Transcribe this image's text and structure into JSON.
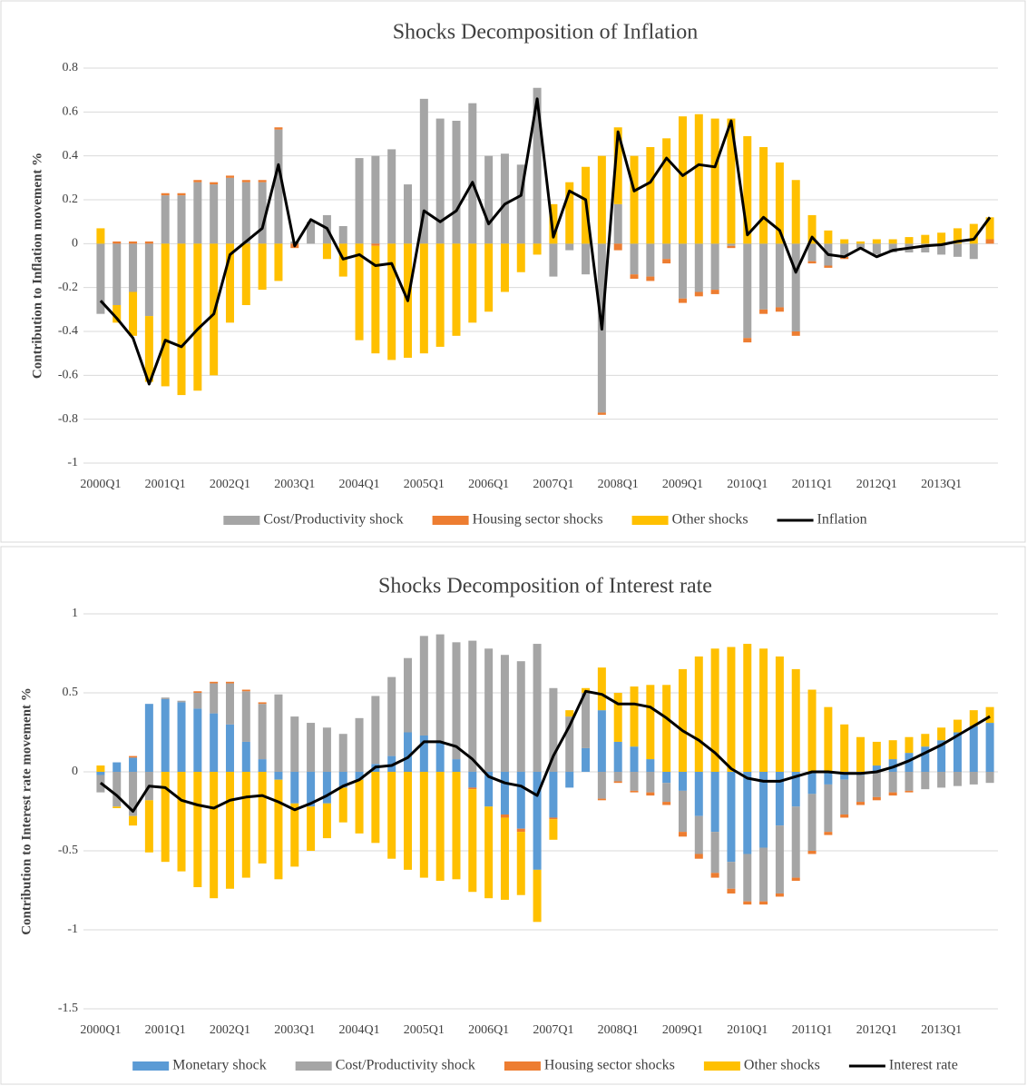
{
  "chart_data": [
    {
      "type": "bar",
      "stacked": true,
      "title": "Shocks Decomposition of Inflation",
      "ylabel": "Contribution to Inflation movement %",
      "categories": [
        "2000Q1",
        null,
        null,
        null,
        "2001Q1",
        null,
        null,
        null,
        "2002Q1",
        null,
        null,
        null,
        "2003Q1",
        null,
        null,
        null,
        "2004Q1",
        null,
        null,
        null,
        "2005Q1",
        null,
        null,
        null,
        "2006Q1",
        null,
        null,
        null,
        "2007Q1",
        null,
        null,
        null,
        "2008Q1",
        null,
        null,
        null,
        "2009Q1",
        null,
        null,
        null,
        "2010Q1",
        null,
        null,
        null,
        "2011Q1",
        null,
        null,
        null,
        "2012Q1",
        null,
        null,
        null,
        "2013Q1",
        null,
        null,
        null
      ],
      "ylim": [
        -1,
        0.8
      ],
      "yticks": [
        -1,
        -0.8,
        -0.6,
        -0.4,
        -0.2,
        0,
        0.2,
        0.4,
        0.6,
        0.8
      ],
      "grid": true,
      "legend": "bottom",
      "series": [
        {
          "name": "Cost/Productivity shock",
          "color": "#a5a5a5",
          "values": [
            -0.32,
            -0.28,
            -0.22,
            -0.33,
            0.22,
            0.22,
            0.28,
            0.27,
            0.3,
            0.28,
            0.28,
            0.52,
            0.01,
            0.1,
            0.13,
            0.08,
            0.39,
            0.4,
            0.43,
            0.27,
            0.66,
            0.57,
            0.56,
            0.64,
            0.4,
            0.41,
            0.36,
            0.71,
            -0.15,
            -0.03,
            -0.14,
            -0.77,
            0.18,
            -0.14,
            -0.15,
            -0.07,
            -0.25,
            -0.22,
            -0.21,
            -0.01,
            -0.43,
            -0.3,
            -0.29,
            -0.4,
            -0.08,
            -0.1,
            -0.06,
            -0.02,
            -0.05,
            -0.04,
            -0.04,
            -0.04,
            -0.05,
            -0.06,
            -0.07,
            0
          ]
        },
        {
          "name": "Housing sector shocks",
          "color": "#ed7d31",
          "values": [
            0,
            0.01,
            0.01,
            0.01,
            0.01,
            0.01,
            0.01,
            0.01,
            0.01,
            0.01,
            0.01,
            0.01,
            -0.02,
            0,
            0,
            0,
            0,
            -0.01,
            0,
            0,
            0,
            0,
            0,
            0,
            0,
            0,
            0,
            0,
            0,
            0,
            0,
            -0.01,
            -0.03,
            -0.02,
            -0.02,
            -0.02,
            -0.02,
            -0.02,
            -0.02,
            -0.01,
            -0.02,
            -0.02,
            -0.02,
            -0.02,
            -0.01,
            -0.01,
            -0.01,
            0,
            0,
            0,
            0,
            0,
            0,
            0,
            0,
            0.02
          ]
        },
        {
          "name": "Other shocks",
          "color": "#ffc000",
          "values": [
            0.07,
            -0.08,
            -0.2,
            -0.3,
            -0.65,
            -0.69,
            -0.67,
            -0.6,
            -0.36,
            -0.28,
            -0.21,
            -0.17,
            0,
            0,
            -0.07,
            -0.15,
            -0.44,
            -0.49,
            -0.53,
            -0.52,
            -0.5,
            -0.47,
            -0.42,
            -0.36,
            -0.31,
            -0.22,
            -0.13,
            -0.05,
            0.18,
            0.28,
            0.35,
            0.4,
            0.35,
            0.4,
            0.44,
            0.48,
            0.58,
            0.59,
            0.57,
            0.57,
            0.49,
            0.44,
            0.37,
            0.29,
            0.13,
            0.06,
            0.02,
            0.01,
            0.02,
            0.02,
            0.03,
            0.04,
            0.05,
            0.07,
            0.09,
            0.1
          ]
        },
        {
          "name": "Inflation",
          "type": "line",
          "color": "#000000",
          "values": [
            -0.26,
            -0.34,
            -0.43,
            -0.64,
            -0.44,
            -0.47,
            -0.39,
            -0.32,
            -0.05,
            0.01,
            0.07,
            0.36,
            -0.01,
            0.11,
            0.07,
            -0.07,
            -0.05,
            -0.1,
            -0.09,
            -0.26,
            0.15,
            0.1,
            0.15,
            0.28,
            0.09,
            0.18,
            0.22,
            0.66,
            0.03,
            0.24,
            0.2,
            -0.39,
            0.51,
            0.24,
            0.28,
            0.39,
            0.31,
            0.36,
            0.35,
            0.56,
            0.04,
            0.12,
            0.06,
            -0.13,
            0.03,
            -0.05,
            -0.06,
            -0.02,
            -0.06,
            -0.03,
            -0.02,
            -0.01,
            -0.005,
            0.01,
            0.02,
            0.12
          ]
        }
      ]
    },
    {
      "type": "bar",
      "stacked": true,
      "title": "Shocks Decomposition of Interest rate",
      "ylabel": "Contribution to Interest rate movement %",
      "categories": [
        "2000Q1",
        null,
        null,
        null,
        "2001Q1",
        null,
        null,
        null,
        "2002Q1",
        null,
        null,
        null,
        "2003Q1",
        null,
        null,
        null,
        "2004Q1",
        null,
        null,
        null,
        "2005Q1",
        null,
        null,
        null,
        "2006Q1",
        null,
        null,
        null,
        "2007Q1",
        null,
        null,
        null,
        "2008Q1",
        null,
        null,
        null,
        "2009Q1",
        null,
        null,
        null,
        "2010Q1",
        null,
        null,
        null,
        "2011Q1",
        null,
        null,
        null,
        "2012Q1",
        null,
        null,
        null,
        "2013Q1",
        null,
        null,
        null
      ],
      "ylim": [
        -1.5,
        1
      ],
      "yticks": [
        -1.5,
        -1,
        -0.5,
        0,
        0.5,
        1
      ],
      "grid": true,
      "legend": "bottom",
      "series": [
        {
          "name": "Monetary shock",
          "color": "#5b9bd5",
          "values": [
            -0.02,
            0.06,
            0.09,
            0.43,
            0.46,
            0.44,
            0.4,
            0.37,
            0.3,
            0.19,
            0.08,
            -0.05,
            -0.2,
            -0.22,
            -0.2,
            -0.1,
            -0.05,
            0.05,
            0.1,
            0.25,
            0.23,
            0.19,
            0.08,
            -0.1,
            -0.22,
            -0.27,
            -0.36,
            -0.62,
            -0.29,
            -0.1,
            0.15,
            0.39,
            0.19,
            0.16,
            0.08,
            -0.07,
            -0.12,
            -0.28,
            -0.38,
            -0.57,
            -0.52,
            -0.48,
            -0.34,
            -0.22,
            -0.14,
            -0.08,
            -0.05,
            -0.02,
            0.04,
            0.08,
            0.12,
            0.16,
            0.2,
            0.25,
            0.29,
            0.31
          ]
        },
        {
          "name": "Cost/Productivity shock",
          "color": "#a5a5a5",
          "values": [
            -0.11,
            -0.22,
            -0.28,
            -0.18,
            0.01,
            0.01,
            0.1,
            0.19,
            0.26,
            0.32,
            0.35,
            0.49,
            0.35,
            0.31,
            0.28,
            0.24,
            0.34,
            0.43,
            0.5,
            0.47,
            0.63,
            0.68,
            0.74,
            0.83,
            0.78,
            0.74,
            0.7,
            0.81,
            0.53,
            0.35,
            0.35,
            -0.17,
            -0.06,
            -0.12,
            -0.13,
            -0.12,
            -0.26,
            -0.24,
            -0.26,
            -0.17,
            -0.3,
            -0.34,
            -0.43,
            -0.45,
            -0.36,
            -0.3,
            -0.22,
            -0.17,
            -0.16,
            -0.13,
            -0.12,
            -0.11,
            -0.1,
            -0.09,
            -0.08,
            -0.07
          ]
        },
        {
          "name": "Housing sector shocks",
          "color": "#ed7d31",
          "values": [
            0,
            0,
            0.01,
            0,
            0,
            0,
            0.01,
            0.01,
            0.01,
            0.01,
            0.01,
            0,
            0,
            0,
            0,
            0,
            0,
            0,
            0,
            0,
            0,
            0,
            0,
            -0.01,
            0,
            -0.02,
            -0.02,
            0,
            -0.01,
            0,
            0,
            -0.01,
            -0.01,
            -0.01,
            -0.02,
            -0.02,
            -0.03,
            -0.03,
            -0.03,
            -0.03,
            -0.02,
            -0.02,
            -0.02,
            -0.02,
            -0.02,
            -0.02,
            -0.02,
            -0.02,
            -0.02,
            -0.02,
            -0.01,
            0,
            0,
            0,
            0,
            0
          ]
        },
        {
          "name": "Other shocks",
          "color": "#ffc000",
          "values": [
            0.04,
            -0.01,
            -0.06,
            -0.33,
            -0.57,
            -0.63,
            -0.73,
            -0.8,
            -0.74,
            -0.67,
            -0.58,
            -0.63,
            -0.4,
            -0.28,
            -0.22,
            -0.22,
            -0.34,
            -0.45,
            -0.55,
            -0.62,
            -0.67,
            -0.69,
            -0.68,
            -0.65,
            -0.58,
            -0.52,
            -0.4,
            -0.33,
            -0.13,
            0.04,
            0.03,
            0.27,
            0.31,
            0.38,
            0.47,
            0.55,
            0.65,
            0.73,
            0.78,
            0.79,
            0.81,
            0.78,
            0.73,
            0.65,
            0.52,
            0.41,
            0.3,
            0.22,
            0.15,
            0.12,
            0.1,
            0.08,
            0.08,
            0.08,
            0.1,
            0.1
          ]
        },
        {
          "name": "Interest rate",
          "type": "line",
          "color": "#000000",
          "values": [
            -0.07,
            -0.15,
            -0.25,
            -0.09,
            -0.1,
            -0.18,
            -0.21,
            -0.23,
            -0.18,
            -0.16,
            -0.15,
            -0.19,
            -0.24,
            -0.2,
            -0.15,
            -0.09,
            -0.05,
            0.03,
            0.04,
            0.09,
            0.19,
            0.19,
            0.16,
            0.08,
            -0.03,
            -0.07,
            -0.09,
            -0.15,
            0.1,
            0.29,
            0.51,
            0.49,
            0.43,
            0.43,
            0.41,
            0.34,
            0.26,
            0.2,
            0.12,
            0.02,
            -0.04,
            -0.06,
            -0.06,
            -0.03,
            0,
            0,
            -0.01,
            -0.01,
            0,
            0.03,
            0.07,
            0.12,
            0.17,
            0.23,
            0.29,
            0.35
          ]
        }
      ]
    }
  ]
}
